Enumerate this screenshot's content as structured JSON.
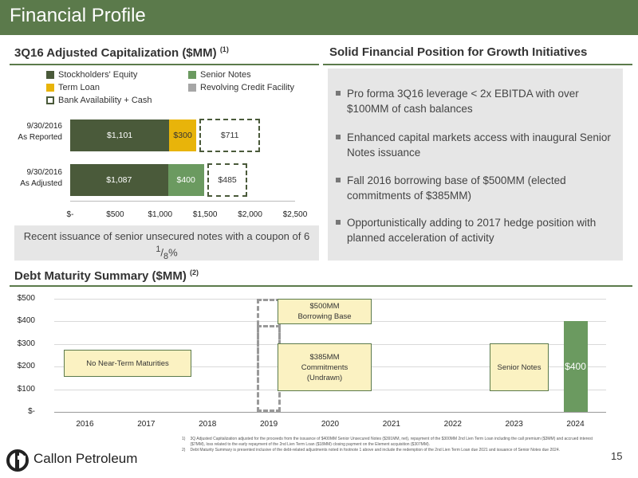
{
  "header": {
    "title": "Financial Profile"
  },
  "cap_section": {
    "title": "3Q16 Adjusted Capitalization ($MM)",
    "footnote_ref": "(1)",
    "legend": {
      "equity": "Stockholders' Equity",
      "senior": "Senior Notes",
      "term": "Term Loan",
      "revolver": "Revolving Credit Facility",
      "bank": "Bank Availability + Cash"
    },
    "rows": [
      {
        "label_line1": "9/30/2016",
        "label_line2": "As Reported"
      },
      {
        "label_line1": "9/30/2016",
        "label_line2": "As Adjusted"
      }
    ],
    "recent_note_pre": "Recent issuance of senior unsecured notes with a coupon of 6",
    "recent_note_num": "1",
    "recent_note_den": "8",
    "recent_note_post": "%"
  },
  "chart_data": [
    {
      "type": "bar",
      "orientation": "horizontal",
      "stacked": true,
      "categories": [
        "9/30/2016 As Reported",
        "9/30/2016 As Adjusted"
      ],
      "series": [
        {
          "name": "Stockholders' Equity",
          "values": [
            1101,
            1087
          ],
          "labels": [
            "$1,101",
            "$1,087"
          ]
        },
        {
          "name": "Senior Notes",
          "values": [
            0,
            400
          ],
          "labels": [
            "",
            "$400"
          ]
        },
        {
          "name": "Term Loan",
          "values": [
            300,
            0
          ],
          "labels": [
            "$300",
            ""
          ]
        },
        {
          "name": "Revolving Credit Facility",
          "values": [
            0,
            0
          ],
          "labels": [
            "",
            ""
          ]
        },
        {
          "name": "Bank Availability + Cash",
          "values": [
            711,
            485
          ],
          "labels": [
            "$711",
            "$485"
          ]
        }
      ],
      "xlim": [
        0,
        2500
      ],
      "xticks": [
        "$-",
        "$500",
        "$1,000",
        "$1,500",
        "$2,000",
        "$2,500"
      ],
      "legend": "top",
      "colors": {
        "equity": "#4a5a3a",
        "senior": "#6b9a60",
        "term": "#e8b40a",
        "revolver": "#a6a6a6",
        "bank": "#4a5a3a"
      }
    },
    {
      "type": "bar",
      "title": "Debt Maturity Summary ($MM)",
      "categories": [
        "2016",
        "2017",
        "2018",
        "2019",
        "2020",
        "2021",
        "2022",
        "2023",
        "2024"
      ],
      "series": [
        {
          "name": "Senior Notes",
          "values": [
            0,
            0,
            0,
            0,
            0,
            0,
            0,
            0,
            400
          ]
        },
        {
          "name": "Borrowing Base",
          "values": [
            0,
            0,
            0,
            500,
            0,
            0,
            0,
            0,
            0
          ]
        },
        {
          "name": "Commitments",
          "values": [
            0,
            0,
            0,
            385,
            0,
            0,
            0,
            0,
            0
          ]
        }
      ],
      "ylim": [
        0,
        500
      ],
      "yticks": [
        "$-",
        "$100",
        "$200",
        "$300",
        "$400",
        "$500"
      ],
      "grid": true,
      "bar_label": "$400",
      "annotations": {
        "no_near": "No Near-Term Maturities",
        "bb_line1": "$500MM",
        "bb_line2": "Borrowing Base",
        "cm_line1": "$385MM",
        "cm_line2": "Commitments",
        "cm_line3": "(Undrawn)",
        "senior_a": "Senior",
        "senior_b": "Notes"
      }
    }
  ],
  "right_section": {
    "title": "Solid Financial Position for Growth Initiatives",
    "bullets": [
      "Pro forma 3Q16 leverage < 2x EBITDA with over $100MM of cash balances",
      "Enhanced capital markets access with inaugural Senior Notes issuance",
      "Fall 2016 borrowing base of $500MM (elected commitments of $385MM)",
      "Opportunistically adding to 2017 hedge position with planned acceleration of activity"
    ]
  },
  "debt_section": {
    "title": "Debt Maturity Summary ($MM)",
    "footnote_ref": "(2)"
  },
  "footer": {
    "company": "Callon Petroleum",
    "page": "15",
    "fn1_num": "1)",
    "fn1": "3Q Adjusted Capitalization adjusted for the proceeds from the issuance of $400MM Senior Unsecured Notes ($391MM, net), repayment of the $300MM 2nd Lien Term Loan including the call premium ($3MM) and accrued interest ($7MM), loss related to the early repayment of the 2nd Lien Term Loan ($18MM) closing payment on the Element acquisition ($307MM).",
    "fn2_num": "2)",
    "fn2": "Debt Maturity Summary is presented inclusive of the debt-related adjustments noted in footnote 1 above and include the redemption of the 2nd Lien Term Loan due 2021 and issuance of Senior Notes due 2024."
  }
}
